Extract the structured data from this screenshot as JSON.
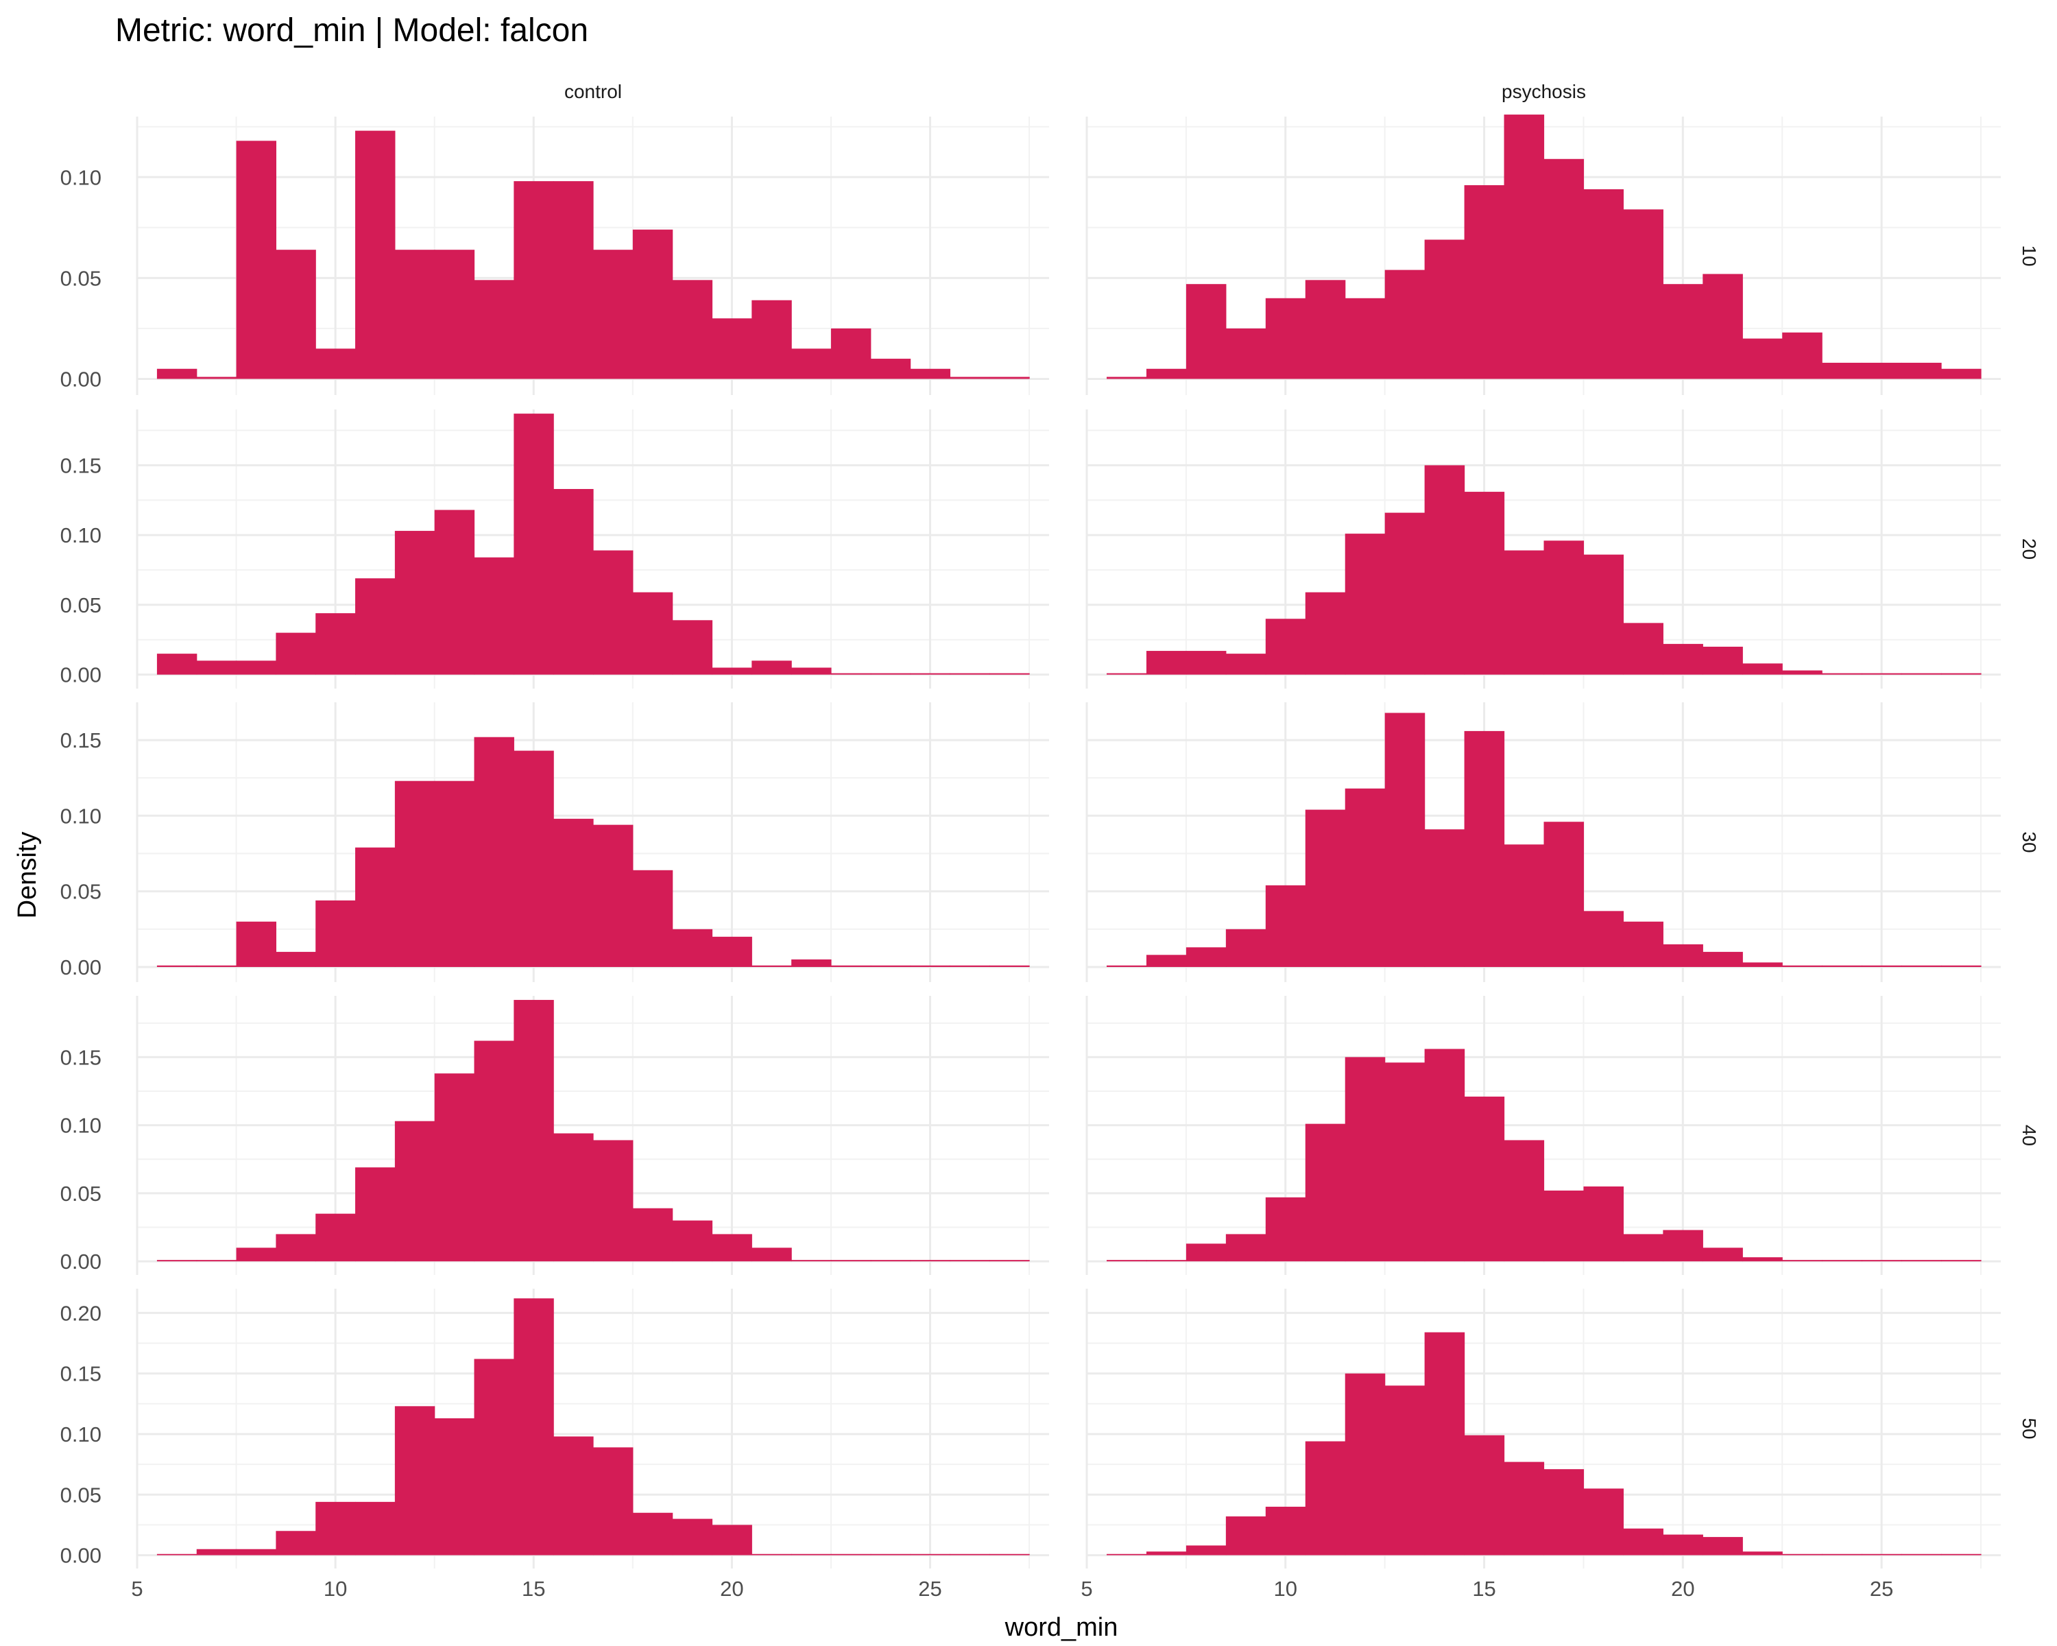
{
  "chart_data": {
    "type": "bar",
    "title": "Metric: word_min | Model: falcon",
    "xlabel": "word_min",
    "ylabel": "Density",
    "bar_color": "#D41C56",
    "grid": true,
    "bin_width": 1,
    "xlim": [
      5,
      28
    ],
    "x_ticks": [
      5,
      10,
      15,
      20,
      25
    ],
    "x_tick_labels": [
      "5",
      "10",
      "15",
      "20",
      "25"
    ],
    "columns": [
      "control",
      "psychosis"
    ],
    "rows": [
      "10",
      "20",
      "30",
      "40",
      "50"
    ],
    "row_axes": [
      {
        "ylim": [
          -0.008,
          0.13
        ],
        "ticks": [
          0,
          0.05,
          0.1
        ],
        "tick_labels": [
          "0.00",
          "0.05",
          "0.10"
        ]
      },
      {
        "ylim": [
          -0.01,
          0.19
        ],
        "ticks": [
          0,
          0.05,
          0.1,
          0.15
        ],
        "tick_labels": [
          "0.00",
          "0.05",
          "0.10",
          "0.15"
        ]
      },
      {
        "ylim": [
          -0.01,
          0.175
        ],
        "ticks": [
          0,
          0.05,
          0.1,
          0.15
        ],
        "tick_labels": [
          "0.00",
          "0.05",
          "0.10",
          "0.15"
        ]
      },
      {
        "ylim": [
          -0.01,
          0.195
        ],
        "ticks": [
          0,
          0.05,
          0.1,
          0.15
        ],
        "tick_labels": [
          "0.00",
          "0.05",
          "0.10",
          "0.15"
        ]
      },
      {
        "ylim": [
          -0.011,
          0.22
        ],
        "ticks": [
          0,
          0.05,
          0.1,
          0.15,
          0.2
        ],
        "tick_labels": [
          "0.00",
          "0.05",
          "0.10",
          "0.15",
          "0.20"
        ]
      }
    ],
    "bin_centers": [
      6,
      7,
      8,
      9,
      10,
      11,
      12,
      13,
      14,
      15,
      16,
      17,
      18,
      19,
      20,
      21,
      22,
      23,
      24,
      25,
      26,
      27
    ],
    "panels": [
      {
        "column": "control",
        "row": "10",
        "values": [
          0.005,
          0.001,
          0.118,
          0.064,
          0.015,
          0.123,
          0.064,
          0.064,
          0.049,
          0.098,
          0.098,
          0.064,
          0.074,
          0.049,
          0.03,
          0.039,
          0.015,
          0.025,
          0.01,
          0.005,
          0.001,
          0.001
        ]
      },
      {
        "column": "psychosis",
        "row": "10",
        "values": [
          0.001,
          0.005,
          0.047,
          0.025,
          0.04,
          0.049,
          0.04,
          0.054,
          0.069,
          0.096,
          0.131,
          0.109,
          0.094,
          0.084,
          0.047,
          0.052,
          0.02,
          0.023,
          0.008,
          0.008,
          0.008,
          0.005
        ]
      },
      {
        "column": "control",
        "row": "20",
        "values": [
          0.015,
          0.01,
          0.01,
          0.03,
          0.044,
          0.069,
          0.103,
          0.118,
          0.084,
          0.187,
          0.133,
          0.089,
          0.059,
          0.039,
          0.005,
          0.01,
          0.005,
          0.001,
          0.001,
          0.001,
          0.001,
          0.001
        ]
      },
      {
        "column": "psychosis",
        "row": "20",
        "values": [
          0.001,
          0.017,
          0.017,
          0.015,
          0.04,
          0.059,
          0.101,
          0.116,
          0.15,
          0.131,
          0.089,
          0.096,
          0.086,
          0.037,
          0.022,
          0.02,
          0.008,
          0.003,
          0.001,
          0.001,
          0.001,
          0.001
        ]
      },
      {
        "column": "control",
        "row": "30",
        "values": [
          0.001,
          0.001,
          0.03,
          0.01,
          0.044,
          0.079,
          0.123,
          0.123,
          0.152,
          0.143,
          0.098,
          0.094,
          0.064,
          0.025,
          0.02,
          0.001,
          0.005,
          0.001,
          0.001,
          0.001,
          0.001,
          0.001
        ]
      },
      {
        "column": "psychosis",
        "row": "30",
        "values": [
          0.001,
          0.008,
          0.013,
          0.025,
          0.054,
          0.104,
          0.118,
          0.168,
          0.091,
          0.156,
          0.081,
          0.096,
          0.037,
          0.03,
          0.015,
          0.01,
          0.003,
          0.001,
          0.001,
          0.001,
          0.001,
          0.001
        ]
      },
      {
        "column": "control",
        "row": "40",
        "values": [
          0.001,
          0.001,
          0.01,
          0.02,
          0.035,
          0.069,
          0.103,
          0.138,
          0.162,
          0.192,
          0.094,
          0.089,
          0.039,
          0.03,
          0.02,
          0.01,
          0.001,
          0.001,
          0.001,
          0.001,
          0.001,
          0.001
        ]
      },
      {
        "column": "psychosis",
        "row": "40",
        "values": [
          0.001,
          0.001,
          0.013,
          0.02,
          0.047,
          0.101,
          0.15,
          0.146,
          0.156,
          0.121,
          0.089,
          0.052,
          0.055,
          0.02,
          0.023,
          0.01,
          0.003,
          0.001,
          0.001,
          0.001,
          0.001,
          0.001
        ]
      },
      {
        "column": "control",
        "row": "50",
        "values": [
          0.001,
          0.005,
          0.005,
          0.02,
          0.044,
          0.044,
          0.123,
          0.113,
          0.162,
          0.212,
          0.098,
          0.089,
          0.035,
          0.03,
          0.025,
          0.001,
          0.001,
          0.001,
          0.001,
          0.001,
          0.001,
          0.001
        ]
      },
      {
        "column": "psychosis",
        "row": "50",
        "values": [
          0.001,
          0.003,
          0.008,
          0.032,
          0.04,
          0.094,
          0.15,
          0.14,
          0.184,
          0.099,
          0.077,
          0.071,
          0.055,
          0.022,
          0.017,
          0.015,
          0.003,
          0.001,
          0.001,
          0.001,
          0.001,
          0.001
        ]
      }
    ]
  }
}
